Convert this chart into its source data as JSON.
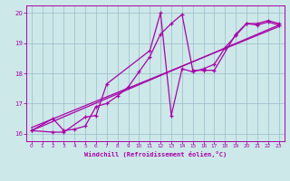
{
  "xlabel": "Windchill (Refroidissement éolien,°C)",
  "bg_color": "#cce8e8",
  "line_color": "#aa00aa",
  "grid_color": "#99bbcc",
  "xlim": [
    -0.5,
    23.5
  ],
  "ylim": [
    15.75,
    20.25
  ],
  "yticks": [
    16,
    17,
    18,
    19,
    20
  ],
  "xticks": [
    0,
    1,
    2,
    3,
    4,
    5,
    6,
    7,
    8,
    9,
    10,
    11,
    12,
    13,
    14,
    15,
    16,
    17,
    18,
    19,
    20,
    21,
    22,
    23
  ],
  "line1_x": [
    0,
    2,
    3,
    4,
    5,
    6,
    7,
    8,
    9,
    10,
    11,
    12,
    13,
    14,
    15,
    16,
    17,
    19,
    20,
    21,
    22,
    23
  ],
  "line1_y": [
    16.1,
    16.5,
    16.1,
    16.15,
    16.25,
    16.9,
    17.0,
    17.25,
    17.55,
    18.05,
    18.55,
    19.3,
    19.65,
    19.95,
    18.1,
    18.1,
    18.1,
    19.3,
    19.65,
    19.65,
    19.75,
    19.65
  ],
  "line2_x": [
    0,
    2,
    3,
    5,
    6,
    7,
    11,
    12,
    13,
    14,
    15,
    16,
    17,
    18,
    19,
    20,
    21,
    22,
    23
  ],
  "line2_y": [
    16.1,
    16.05,
    16.05,
    16.55,
    16.6,
    17.65,
    18.75,
    20.0,
    16.6,
    18.15,
    18.05,
    18.15,
    18.3,
    18.85,
    19.25,
    19.65,
    19.6,
    19.7,
    19.6
  ],
  "regline1_x": [
    0,
    23
  ],
  "regline1_y": [
    16.1,
    19.6
  ],
  "regline2_x": [
    0,
    23
  ],
  "regline2_y": [
    16.2,
    19.55
  ]
}
